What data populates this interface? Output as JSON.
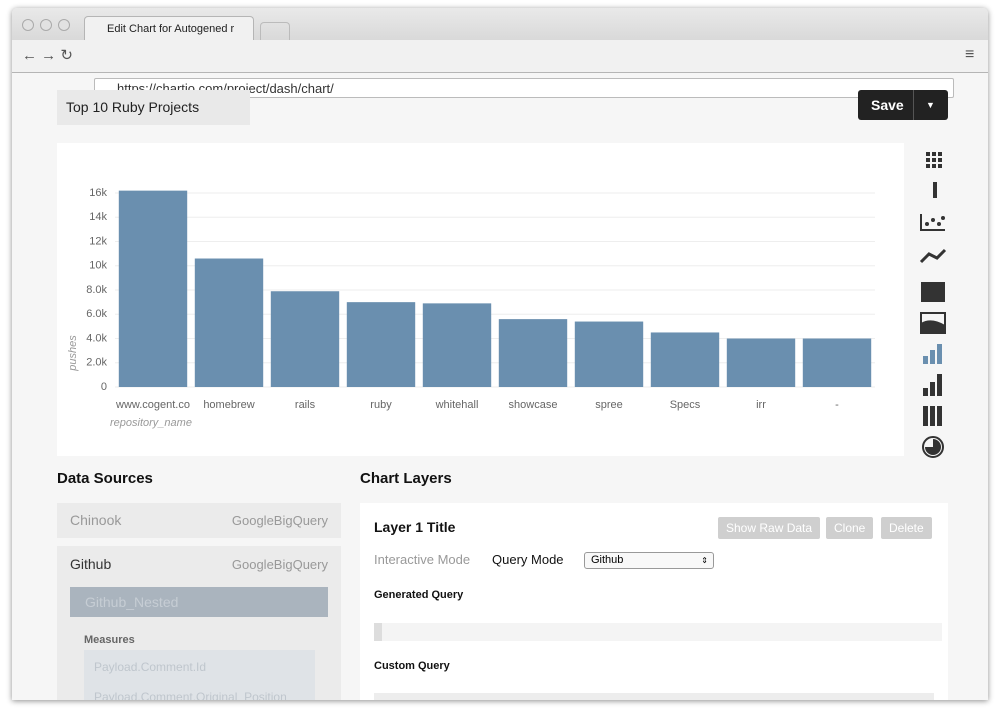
{
  "browser": {
    "tab_title": "Edit Chart for Autogened r",
    "url": "https://chartio.com/project/dash/chart/"
  },
  "header": {
    "chart_title": "Top 10 Ruby Projects",
    "save_button": "Save"
  },
  "chart_data": {
    "type": "bar",
    "categories": [
      "www.cogent.co",
      "homebrew",
      "rails",
      "ruby",
      "whitehall",
      "showcase",
      "spree",
      "Specs",
      "irr",
      "-"
    ],
    "values": [
      16200,
      10600,
      7900,
      7000,
      6900,
      5600,
      5400,
      4500,
      4000,
      4000
    ],
    "color": "#6a8faf",
    "x_label": "repository_name",
    "y_label": "pushes",
    "ylim": [
      0,
      16500
    ],
    "yticks": [
      0,
      {
        "value": 2000,
        "label": "2.0k"
      },
      {
        "value": 4000,
        "label": "4.0k"
      },
      {
        "value": 6000,
        "label": "6.0k"
      },
      {
        "value": 8000,
        "label": "8.0k"
      },
      {
        "value": 10000,
        "label": "10k"
      },
      {
        "value": 12000,
        "label": "12k"
      },
      {
        "value": 14000,
        "label": "14k"
      },
      {
        "value": 16000,
        "label": "16k"
      }
    ],
    "grid": true
  },
  "data_sources": {
    "title": "Data Sources",
    "items": [
      {
        "name": "Chinook",
        "type": "GoogleBigQuery"
      },
      {
        "name": "Github",
        "type": "GoogleBigQuery"
      }
    ],
    "selected_table": "Github_Nested",
    "measures_title": "Measures",
    "measures": [
      "Payload.Comment.Id",
      "Payload.Comment.Original_Position"
    ]
  },
  "chart_layers": {
    "title": "Chart Layers",
    "layer_title": "Layer 1 Title",
    "buttons": [
      "Show Raw Data",
      "Clone",
      "Delete"
    ],
    "modes": [
      "Interactive Mode",
      "Query Mode"
    ],
    "query_select": "Github",
    "generated_query": "Generated Query",
    "custom_query": "Custom Query"
  }
}
